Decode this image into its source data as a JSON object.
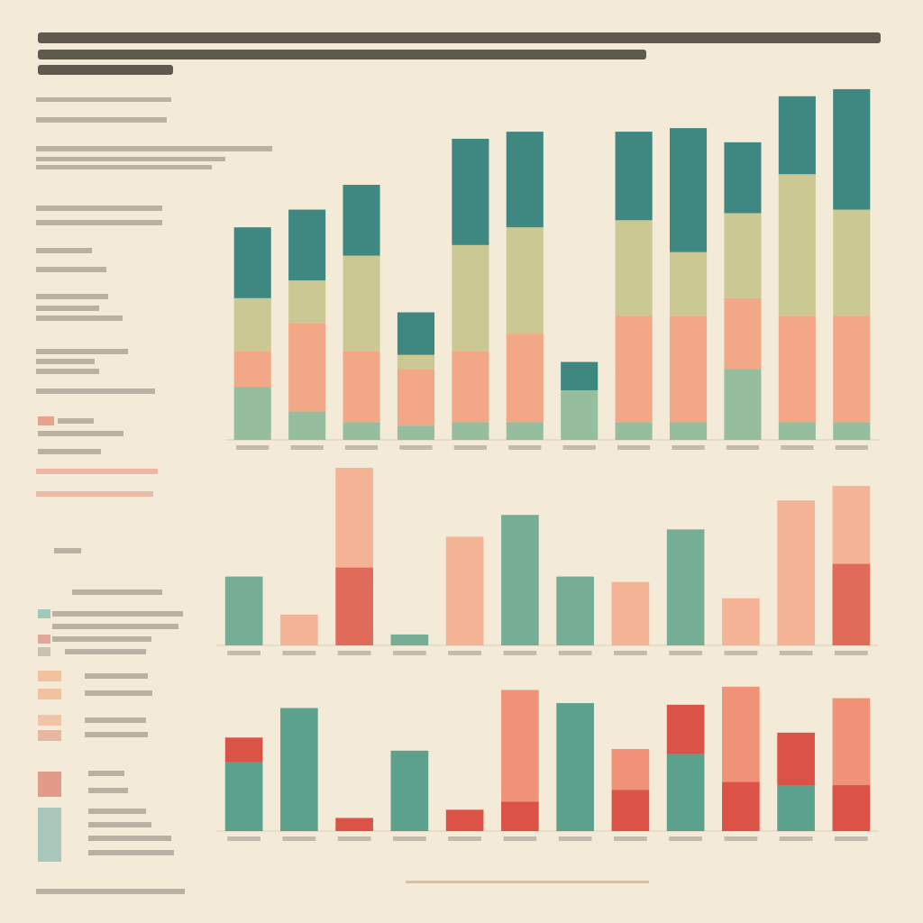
{
  "chart_data": [
    {
      "type": "bar",
      "stacked": true,
      "ylim": [
        0,
        100
      ],
      "series": [
        {
          "color": "#8fb89a",
          "values": [
            15,
            8,
            5,
            4,
            5,
            5,
            14,
            5,
            5,
            20,
            5,
            5
          ]
        },
        {
          "color": "#f2a27f",
          "values": [
            10,
            25,
            20,
            16,
            20,
            25,
            0,
            30,
            30,
            20,
            30,
            30
          ]
        },
        {
          "color": "#c9c48e",
          "values": [
            15,
            12,
            27,
            4,
            30,
            30,
            0,
            27,
            18,
            24,
            40,
            30
          ]
        },
        {
          "color": "#2f7f7a",
          "values": [
            20,
            20,
            20,
            12,
            30,
            27,
            8,
            25,
            35,
            20,
            22,
            34
          ]
        }
      ]
    },
    {
      "type": "bar",
      "stacked": true,
      "ylim": [
        0,
        100
      ],
      "series": [
        {
          "color": "#6aa88e",
          "values": [
            38,
            0,
            0,
            6,
            0,
            72,
            38,
            0,
            64,
            0,
            0,
            0
          ]
        },
        {
          "color": "#e0604f",
          "values": [
            0,
            0,
            43,
            0,
            0,
            0,
            0,
            0,
            0,
            0,
            0,
            45
          ]
        },
        {
          "color": "#f4ae8e",
          "values": [
            0,
            17,
            55,
            0,
            60,
            0,
            0,
            35,
            0,
            26,
            80,
            43
          ]
        }
      ]
    },
    {
      "type": "bar",
      "stacked": true,
      "ylim": [
        0,
        100
      ],
      "series": [
        {
          "color": "#4f9a86",
          "values": [
            42,
            75,
            0,
            49,
            0,
            0,
            78,
            0,
            47,
            0,
            28,
            0
          ]
        },
        {
          "color": "#d9453a",
          "values": [
            15,
            0,
            8,
            0,
            13,
            18,
            0,
            25,
            30,
            30,
            32,
            28
          ]
        },
        {
          "color": "#f08a70",
          "values": [
            0,
            0,
            0,
            0,
            0,
            68,
            0,
            25,
            0,
            58,
            0,
            53
          ]
        }
      ]
    }
  ]
}
